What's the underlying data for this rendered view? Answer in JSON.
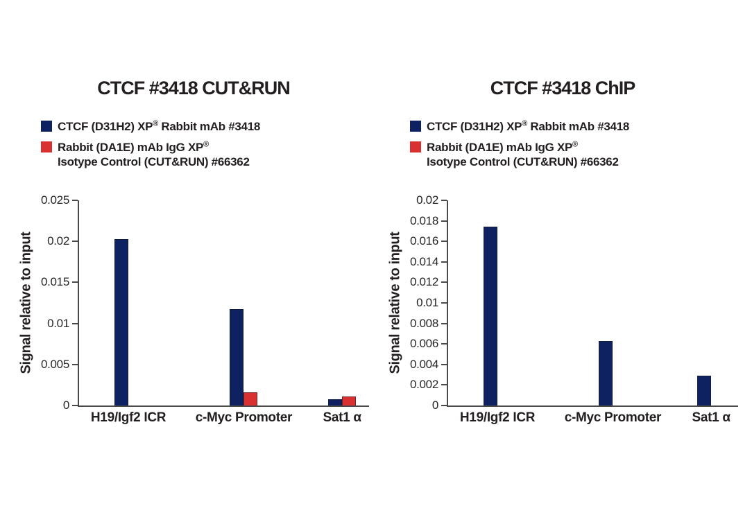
{
  "figure": {
    "background": "#ffffff"
  },
  "colors": {
    "ctcf_blue": "#0e2161",
    "igg_red": "#d93131",
    "axis_gray": "#4a4a4a",
    "text": "#231f20"
  },
  "legend": {
    "items": [
      {
        "swatch_color": "#0e2161",
        "text_main": "CTCF (D31H2) XP",
        "text_sup": "®",
        "text_rest": " Rabbit mAb #3418",
        "text_line2": ""
      },
      {
        "swatch_color": "#d93131",
        "text_main": "Rabbit (DA1E) mAb IgG XP",
        "text_sup": "®",
        "text_rest": "",
        "text_line2": "Isotype Control (CUT&RUN) #66362"
      }
    ]
  },
  "chart_data": [
    {
      "type": "bar",
      "title": "CTCF #3418 CUT&RUN",
      "xlabel": "",
      "ylabel": "Signal relative to input",
      "categories": [
        "H19/Igf2 ICR",
        "c-Myc Promoter",
        "Sat1 α"
      ],
      "series": [
        {
          "name": "CTCF (D31H2) XP® Rabbit mAb #3418",
          "color": "#0e2161",
          "values": [
            0.0203,
            0.0117,
            0.0008
          ]
        },
        {
          "name": "Rabbit (DA1E) mAb IgG XP® Isotype Control (CUT&RUN) #66362",
          "color": "#d93131",
          "values": [
            0,
            0.0016,
            0.0011
          ]
        }
      ],
      "ylim": [
        0,
        0.025
      ],
      "ytick_step": 0.005,
      "yticks": [
        "0",
        "0.005",
        "0.01",
        "0.015",
        "0.02",
        "0.025"
      ],
      "grid": false,
      "legend_position": "top-left"
    },
    {
      "type": "bar",
      "title": "CTCF #3418 ChIP",
      "xlabel": "",
      "ylabel": "Signal relative to input",
      "categories": [
        "H19/Igf2 ICR",
        "c-Myc Promoter",
        "Sat1 α"
      ],
      "series": [
        {
          "name": "CTCF (D31H2) XP® Rabbit mAb #3418",
          "color": "#0e2161",
          "values": [
            0.0174,
            0.0063,
            0.0029
          ]
        },
        {
          "name": "Rabbit (DA1E) mAb IgG XP® Isotype Control (CUT&RUN) #66362",
          "color": "#d93131",
          "values": [
            0,
            0,
            0
          ]
        }
      ],
      "ylim": [
        0,
        0.02
      ],
      "ytick_step": 0.002,
      "yticks": [
        "0",
        "0.002",
        "0.004",
        "0.006",
        "0.008",
        "0.01",
        "0.012",
        "0.014",
        "0.016",
        "0.018",
        "0.02"
      ],
      "grid": false,
      "legend_position": "top-left"
    }
  ]
}
